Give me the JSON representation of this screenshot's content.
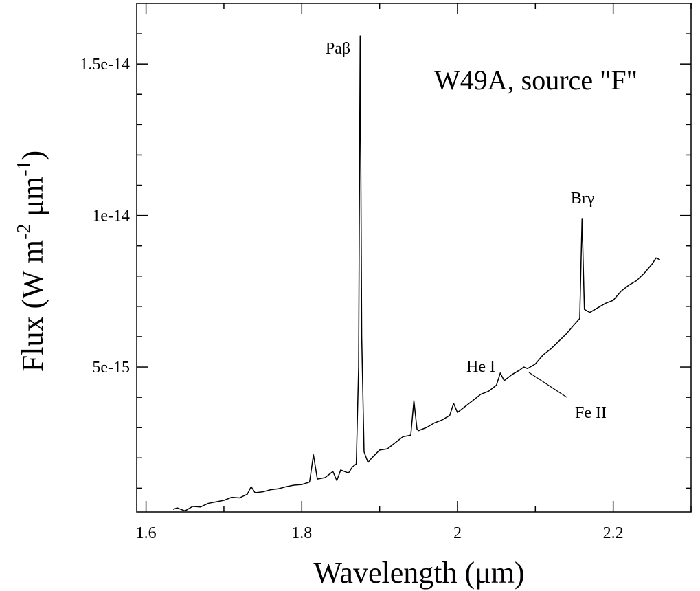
{
  "chart_data": {
    "type": "line",
    "title": "W49A, source \"F\"",
    "xlabel": "Wavelength (μm)",
    "ylabel_parts": [
      "Flux (W m",
      "-2",
      " μm",
      "-1",
      ")"
    ],
    "annotations": [
      "Paβ",
      "Brγ",
      "He I",
      "Fe II"
    ],
    "color": "#000000",
    "xlim": [
      1.588,
      2.3
    ],
    "ylim": [
      2.15e-16,
      1.7e-14
    ],
    "xticks": [
      1.6,
      1.8,
      2,
      2.2
    ],
    "xminorticks": [
      1.7,
      1.9,
      2.1,
      2.3
    ],
    "yticks": [
      5e-15,
      1e-14,
      1.5e-14
    ],
    "yminorticks": [
      1e-15,
      2e-15,
      3e-15,
      4e-15,
      6e-15,
      7e-15,
      8e-15,
      9e-15,
      1.1e-14,
      1.2e-14,
      1.3e-14,
      1.4e-14,
      1.6e-14
    ],
    "x": [
      1.635,
      1.64,
      1.65,
      1.66,
      1.67,
      1.68,
      1.69,
      1.7,
      1.71,
      1.72,
      1.73,
      1.735,
      1.74,
      1.75,
      1.76,
      1.77,
      1.78,
      1.79,
      1.8,
      1.81,
      1.815,
      1.82,
      1.83,
      1.84,
      1.845,
      1.85,
      1.86,
      1.865,
      1.87,
      1.873,
      1.875,
      1.877,
      1.88,
      1.885,
      1.89,
      1.9,
      1.91,
      1.92,
      1.93,
      1.94,
      1.944,
      1.948,
      1.95,
      1.96,
      1.97,
      1.98,
      1.99,
      1.995,
      2.0,
      2.01,
      2.02,
      2.03,
      2.04,
      2.05,
      2.055,
      2.06,
      2.07,
      2.08,
      2.085,
      2.09,
      2.1,
      2.11,
      2.12,
      2.13,
      2.14,
      2.15,
      2.157,
      2.16,
      2.163,
      2.17,
      2.18,
      2.19,
      2.2,
      2.21,
      2.22,
      2.23,
      2.24,
      2.25,
      2.255,
      2.26
    ],
    "values": [
      3e-16,
      3.5e-16,
      2.5e-16,
      4e-16,
      3.8e-16,
      5e-16,
      5.5e-16,
      6e-16,
      7e-16,
      6.8e-16,
      8e-16,
      1.05e-15,
      8.5e-16,
      8.8e-16,
      9.5e-16,
      9.8e-16,
      1.05e-15,
      1.1e-15,
      1.12e-15,
      1.2e-15,
      2.1e-15,
      1.3e-15,
      1.35e-15,
      1.55e-15,
      1.25e-15,
      1.6e-15,
      1.5e-15,
      1.7e-15,
      1.8e-15,
      5e-15,
      1.593e-14,
      6e-15,
      2.2e-15,
      1.85e-15,
      2e-15,
      2.26e-15,
      2.3e-15,
      2.5e-15,
      2.7e-15,
      2.75e-15,
      3.89e-15,
      2.95e-15,
      2.9e-15,
      3e-15,
      3.15e-15,
      3.25e-15,
      3.4e-15,
      3.8e-15,
      3.5e-15,
      3.7e-15,
      3.9e-15,
      4.1e-15,
      4.2e-15,
      4.4e-15,
      4.8e-15,
      4.55e-15,
      4.75e-15,
      4.9e-15,
      5e-15,
      4.95e-15,
      5.1e-15,
      5.4e-15,
      5.6e-15,
      5.85e-15,
      6.1e-15,
      6.4e-15,
      6.6e-15,
      9.9e-15,
      6.9e-15,
      6.8e-15,
      6.95e-15,
      7.1e-15,
      7.2e-15,
      7.5e-15,
      7.7e-15,
      7.85e-15,
      8.1e-15,
      8.4e-15,
      8.6e-15,
      8.54e-15
    ]
  }
}
